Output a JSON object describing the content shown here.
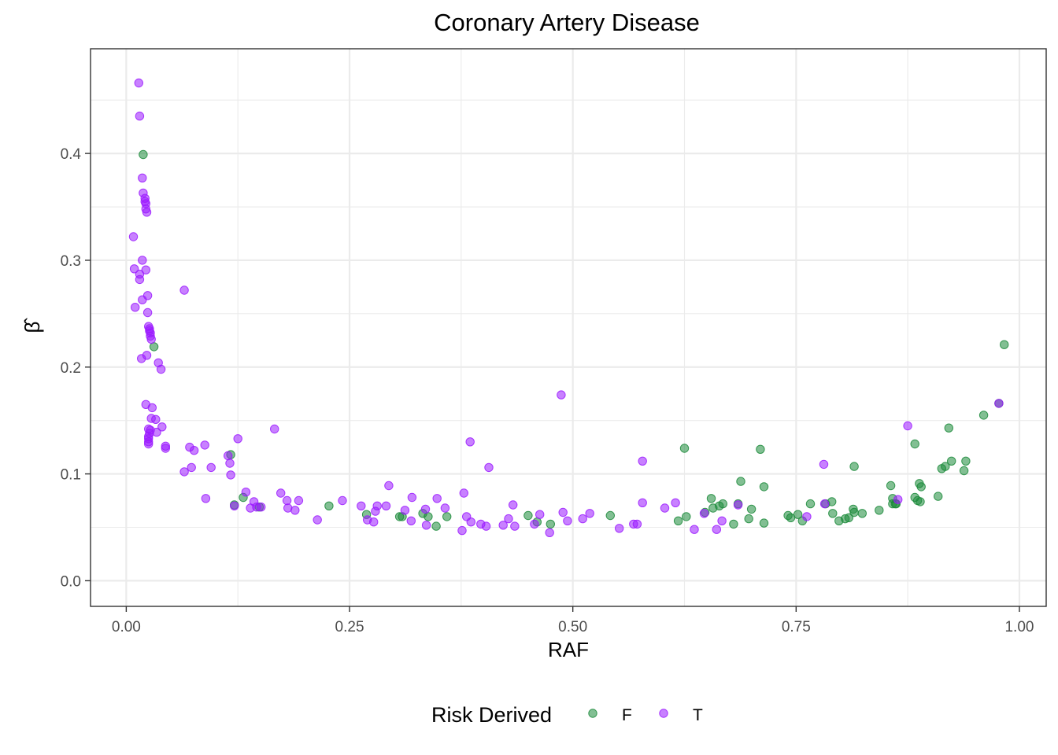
{
  "chart_data": {
    "type": "scatter",
    "title": "Coronary Artery Disease",
    "xlabel": "RAF",
    "ylabel": "β̂",
    "xlim": [
      -0.04,
      1.03
    ],
    "ylim": [
      -0.024,
      0.498
    ],
    "x_ticks": [
      0.0,
      0.25,
      0.5,
      0.75,
      1.0
    ],
    "x_tick_labels": [
      "0.00",
      "0.25",
      "0.50",
      "0.75",
      "1.00"
    ],
    "y_ticks": [
      0.0,
      0.1,
      0.2,
      0.3,
      0.4
    ],
    "y_tick_labels": [
      "0.0",
      "0.1",
      "0.2",
      "0.3",
      "0.4"
    ],
    "grid": true,
    "legend": {
      "title": "Risk Derived",
      "position": "bottom"
    },
    "point_opacity": 0.55,
    "series": [
      {
        "name": "F",
        "color": "#1b8a3a",
        "points": [
          [
            0.019,
            0.399
          ],
          [
            0.031,
            0.219
          ],
          [
            0.117,
            0.118
          ],
          [
            0.121,
            0.071
          ],
          [
            0.131,
            0.078
          ],
          [
            0.149,
            0.069
          ],
          [
            0.227,
            0.07
          ],
          [
            0.269,
            0.062
          ],
          [
            0.306,
            0.06
          ],
          [
            0.309,
            0.06
          ],
          [
            0.332,
            0.063
          ],
          [
            0.338,
            0.06
          ],
          [
            0.347,
            0.051
          ],
          [
            0.359,
            0.06
          ],
          [
            0.45,
            0.061
          ],
          [
            0.46,
            0.055
          ],
          [
            0.475,
            0.053
          ],
          [
            0.542,
            0.061
          ],
          [
            0.618,
            0.056
          ],
          [
            0.625,
            0.124
          ],
          [
            0.627,
            0.06
          ],
          [
            0.648,
            0.064
          ],
          [
            0.655,
            0.077
          ],
          [
            0.657,
            0.068
          ],
          [
            0.664,
            0.07
          ],
          [
            0.668,
            0.072
          ],
          [
            0.68,
            0.053
          ],
          [
            0.685,
            0.072
          ],
          [
            0.688,
            0.093
          ],
          [
            0.697,
            0.058
          ],
          [
            0.7,
            0.067
          ],
          [
            0.71,
            0.123
          ],
          [
            0.714,
            0.088
          ],
          [
            0.714,
            0.054
          ],
          [
            0.741,
            0.061
          ],
          [
            0.744,
            0.059
          ],
          [
            0.752,
            0.062
          ],
          [
            0.757,
            0.056
          ],
          [
            0.766,
            0.072
          ],
          [
            0.783,
            0.072
          ],
          [
            0.79,
            0.074
          ],
          [
            0.791,
            0.063
          ],
          [
            0.798,
            0.056
          ],
          [
            0.805,
            0.058
          ],
          [
            0.809,
            0.059
          ],
          [
            0.814,
            0.067
          ],
          [
            0.815,
            0.064
          ],
          [
            0.815,
            0.107
          ],
          [
            0.824,
            0.063
          ],
          [
            0.843,
            0.066
          ],
          [
            0.856,
            0.089
          ],
          [
            0.858,
            0.077
          ],
          [
            0.858,
            0.072
          ],
          [
            0.861,
            0.072
          ],
          [
            0.862,
            0.072
          ],
          [
            0.883,
            0.128
          ],
          [
            0.883,
            0.078
          ],
          [
            0.886,
            0.075
          ],
          [
            0.888,
            0.091
          ],
          [
            0.889,
            0.074
          ],
          [
            0.89,
            0.088
          ],
          [
            0.909,
            0.079
          ],
          [
            0.913,
            0.105
          ],
          [
            0.917,
            0.107
          ],
          [
            0.921,
            0.143
          ],
          [
            0.924,
            0.112
          ],
          [
            0.938,
            0.103
          ],
          [
            0.94,
            0.112
          ],
          [
            0.96,
            0.155
          ],
          [
            0.977,
            0.166
          ],
          [
            0.983,
            0.221
          ]
        ]
      },
      {
        "name": "T",
        "color": "#9b1aff",
        "points": [
          [
            0.014,
            0.466
          ],
          [
            0.015,
            0.435
          ],
          [
            0.018,
            0.377
          ],
          [
            0.019,
            0.363
          ],
          [
            0.021,
            0.358
          ],
          [
            0.021,
            0.355
          ],
          [
            0.022,
            0.353
          ],
          [
            0.022,
            0.348
          ],
          [
            0.023,
            0.345
          ],
          [
            0.008,
            0.322
          ],
          [
            0.018,
            0.3
          ],
          [
            0.009,
            0.292
          ],
          [
            0.022,
            0.291
          ],
          [
            0.015,
            0.287
          ],
          [
            0.015,
            0.282
          ],
          [
            0.024,
            0.267
          ],
          [
            0.018,
            0.263
          ],
          [
            0.01,
            0.256
          ],
          [
            0.065,
            0.272
          ],
          [
            0.024,
            0.251
          ],
          [
            0.025,
            0.238
          ],
          [
            0.026,
            0.236
          ],
          [
            0.026,
            0.234
          ],
          [
            0.027,
            0.232
          ],
          [
            0.027,
            0.229
          ],
          [
            0.028,
            0.226
          ],
          [
            0.023,
            0.211
          ],
          [
            0.017,
            0.208
          ],
          [
            0.036,
            0.204
          ],
          [
            0.039,
            0.198
          ],
          [
            0.487,
            0.174
          ],
          [
            0.022,
            0.165
          ],
          [
            0.029,
            0.162
          ],
          [
            0.028,
            0.152
          ],
          [
            0.033,
            0.151
          ],
          [
            0.04,
            0.144
          ],
          [
            0.025,
            0.142
          ],
          [
            0.027,
            0.141
          ],
          [
            0.026,
            0.138
          ],
          [
            0.034,
            0.139
          ],
          [
            0.025,
            0.135
          ],
          [
            0.025,
            0.133
          ],
          [
            0.025,
            0.13
          ],
          [
            0.025,
            0.128
          ],
          [
            0.044,
            0.126
          ],
          [
            0.044,
            0.124
          ],
          [
            0.071,
            0.125
          ],
          [
            0.076,
            0.122
          ],
          [
            0.088,
            0.127
          ],
          [
            0.125,
            0.133
          ],
          [
            0.166,
            0.142
          ],
          [
            0.385,
            0.13
          ],
          [
            0.065,
            0.102
          ],
          [
            0.073,
            0.106
          ],
          [
            0.095,
            0.106
          ],
          [
            0.114,
            0.117
          ],
          [
            0.116,
            0.11
          ],
          [
            0.117,
            0.099
          ],
          [
            0.406,
            0.106
          ],
          [
            0.578,
            0.112
          ],
          [
            0.875,
            0.145
          ],
          [
            0.781,
            0.109
          ],
          [
            0.089,
            0.077
          ],
          [
            0.121,
            0.07
          ],
          [
            0.134,
            0.083
          ],
          [
            0.139,
            0.068
          ],
          [
            0.143,
            0.074
          ],
          [
            0.146,
            0.069
          ],
          [
            0.151,
            0.069
          ],
          [
            0.173,
            0.082
          ],
          [
            0.18,
            0.075
          ],
          [
            0.181,
            0.068
          ],
          [
            0.189,
            0.066
          ],
          [
            0.193,
            0.075
          ],
          [
            0.214,
            0.057
          ],
          [
            0.242,
            0.075
          ],
          [
            0.263,
            0.07
          ],
          [
            0.27,
            0.057
          ],
          [
            0.277,
            0.055
          ],
          [
            0.279,
            0.065
          ],
          [
            0.281,
            0.07
          ],
          [
            0.291,
            0.07
          ],
          [
            0.294,
            0.089
          ],
          [
            0.312,
            0.066
          ],
          [
            0.319,
            0.056
          ],
          [
            0.32,
            0.078
          ],
          [
            0.335,
            0.067
          ],
          [
            0.336,
            0.052
          ],
          [
            0.348,
            0.077
          ],
          [
            0.357,
            0.068
          ],
          [
            0.376,
            0.047
          ],
          [
            0.378,
            0.082
          ],
          [
            0.381,
            0.06
          ],
          [
            0.386,
            0.055
          ],
          [
            0.397,
            0.053
          ],
          [
            0.403,
            0.051
          ],
          [
            0.422,
            0.052
          ],
          [
            0.428,
            0.058
          ],
          [
            0.433,
            0.071
          ],
          [
            0.435,
            0.051
          ],
          [
            0.457,
            0.053
          ],
          [
            0.463,
            0.062
          ],
          [
            0.474,
            0.045
          ],
          [
            0.489,
            0.064
          ],
          [
            0.494,
            0.056
          ],
          [
            0.511,
            0.058
          ],
          [
            0.519,
            0.063
          ],
          [
            0.552,
            0.049
          ],
          [
            0.568,
            0.053
          ],
          [
            0.572,
            0.053
          ],
          [
            0.578,
            0.073
          ],
          [
            0.603,
            0.068
          ],
          [
            0.615,
            0.073
          ],
          [
            0.636,
            0.048
          ],
          [
            0.647,
            0.063
          ],
          [
            0.661,
            0.048
          ],
          [
            0.667,
            0.056
          ],
          [
            0.762,
            0.06
          ],
          [
            0.864,
            0.076
          ],
          [
            0.685,
            0.071
          ],
          [
            0.782,
            0.072
          ],
          [
            0.977,
            0.166
          ]
        ]
      }
    ]
  }
}
